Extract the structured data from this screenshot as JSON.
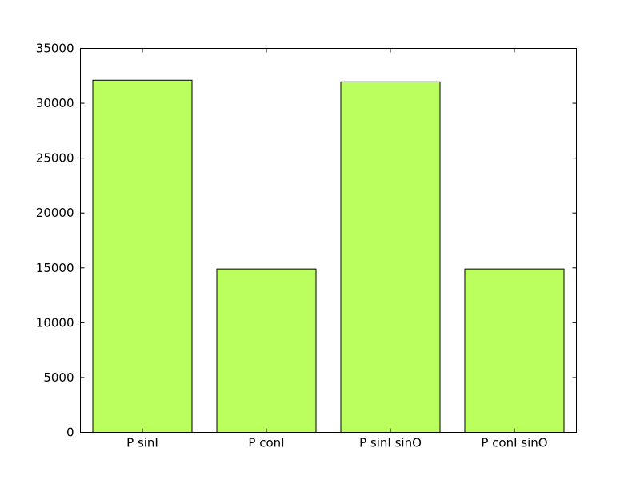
{
  "chart_data": {
    "type": "bar",
    "title": "",
    "xlabel": "",
    "ylabel": "",
    "categories": [
      "P sinI",
      "P conI",
      "P sinI sinO",
      "P conI sinO"
    ],
    "values": [
      32100,
      14900,
      31950,
      14900
    ],
    "ylim": [
      0,
      35000
    ],
    "yticks": [
      0,
      5000,
      10000,
      15000,
      20000,
      25000,
      30000,
      35000
    ],
    "grid": false,
    "legend": "none",
    "bar_color": "#bbff5e",
    "edge_color": "#000000"
  }
}
